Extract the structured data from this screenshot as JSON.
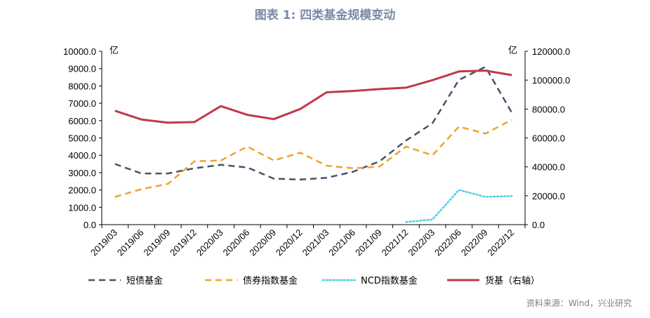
{
  "chart_data": {
    "type": "line",
    "title": "图表 1:   四类基金规模变动",
    "source": "资料来源：Wind，兴业研究",
    "y_left_unit": "亿",
    "y_right_unit": "亿",
    "ylim_left": [
      0,
      10000
    ],
    "ylim_right": [
      0,
      120000
    ],
    "y_left_ticks": [
      "0.0",
      "1000.0",
      "2000.0",
      "3000.0",
      "4000.0",
      "5000.0",
      "6000.0",
      "7000.0",
      "8000.0",
      "9000.0",
      "10000.0"
    ],
    "y_right_ticks": [
      "0.0",
      "20000.0",
      "40000.0",
      "60000.0",
      "80000.0",
      "100000.0",
      "120000.0"
    ],
    "categories": [
      "2019/03",
      "2019/06",
      "2019/09",
      "2019/12",
      "2020/03",
      "2020/06",
      "2020/09",
      "2020/12",
      "2021/03",
      "2021/06",
      "2021/09",
      "2021/12",
      "2022/03",
      "2022/06",
      "2022/09",
      "2022/12"
    ],
    "legend_placement": "bottom",
    "grid": false,
    "series": [
      {
        "name": "短债基金",
        "axis": "left",
        "color": "#44546a",
        "dash": "dashed",
        "values": [
          3500,
          2950,
          2950,
          3250,
          3450,
          3300,
          2650,
          2600,
          2700,
          3050,
          3650,
          4850,
          5850,
          8350,
          9100,
          6450
        ]
      },
      {
        "name": "债券指数基金",
        "axis": "left",
        "color": "#f0a22e",
        "dash": "dashed",
        "values": [
          1600,
          2050,
          2350,
          3650,
          3700,
          4500,
          3700,
          4150,
          3400,
          3250,
          3350,
          4500,
          4000,
          5650,
          5250,
          6050
        ]
      },
      {
        "name": "NCD指数基金",
        "axis": "left",
        "color": "#4dd0e1",
        "dash": "dotted",
        "values": [
          null,
          null,
          null,
          null,
          null,
          null,
          null,
          null,
          null,
          null,
          null,
          150,
          300,
          2000,
          1600,
          1650
        ]
      },
      {
        "name": "货基（右轴）",
        "axis": "right",
        "color": "#c0394b",
        "dash": "solid",
        "values": [
          78800,
          72800,
          70600,
          71000,
          82000,
          76000,
          73000,
          80000,
          91600,
          92500,
          93800,
          94800,
          100000,
          106000,
          106600,
          103500
        ]
      }
    ]
  }
}
